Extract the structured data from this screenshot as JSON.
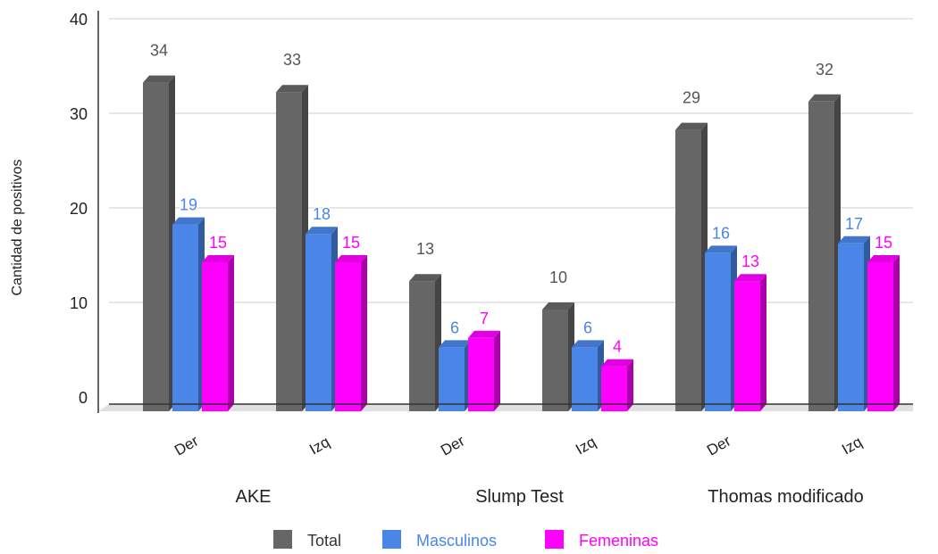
{
  "chart_data": {
    "type": "bar",
    "style": "3d-clustered-column",
    "ylabel": "Cantidad de positivos",
    "ylim": [
      0,
      40
    ],
    "yticks": [
      0,
      10,
      20,
      30,
      40
    ],
    "grid": true,
    "legend_position": "bottom",
    "groups": [
      {
        "label": "AKE",
        "categories": [
          "Der",
          "Izq"
        ]
      },
      {
        "label": "Slump Test",
        "categories": [
          "Der",
          "Izq"
        ]
      },
      {
        "label": "Thomas modificado",
        "categories": [
          "Der",
          "Izq"
        ]
      }
    ],
    "categories": [
      "Der",
      "Izq",
      "Der",
      "Izq",
      "Der",
      "Izq"
    ],
    "series": [
      {
        "name": "Total",
        "color": "#666666",
        "values": [
          34,
          33,
          13,
          10,
          29,
          32
        ]
      },
      {
        "name": "Masculinos",
        "color": "#4a86e8",
        "values": [
          19,
          18,
          6,
          6,
          16,
          17
        ]
      },
      {
        "name": "Femeninas",
        "color": "#ff00ff",
        "values": [
          15,
          15,
          7,
          4,
          13,
          15
        ]
      }
    ]
  }
}
